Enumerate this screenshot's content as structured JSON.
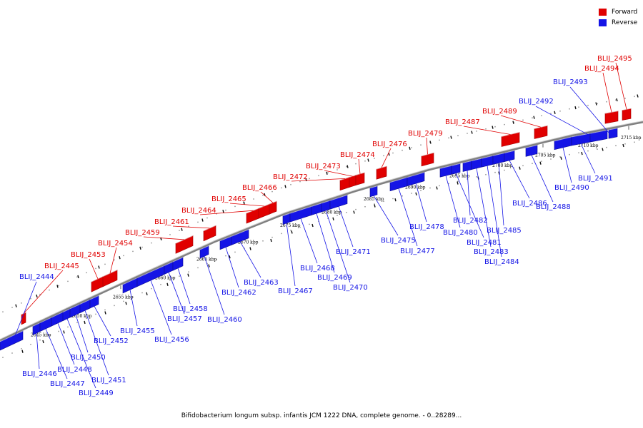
{
  "caption": "Bifidobacterium longum subsp. infantis JCM 1222 DNA, complete genome. - 0..28289...",
  "legend": [
    {
      "label": "Forward",
      "color": "#e00000"
    },
    {
      "label": "Reverse",
      "color": "#1414e6"
    }
  ],
  "colors": {
    "forward": "#e00000",
    "reverse": "#1414e6",
    "backbone": "#808080"
  },
  "ticks": [
    "2645 kbp",
    "2650 kbp",
    "2655 kbp",
    "2660 kbp",
    "2665 kbp",
    "2670 kbp",
    "2675 kbp",
    "2680 kbp",
    "2685 kbp",
    "2690 kbp",
    "2695 kbp",
    "2700 kbp",
    "2705 kbp",
    "2710 kbp",
    "2715 kbp"
  ],
  "forward_genes": [
    "BLIJ_2445",
    "BLIJ_2453",
    "BLIJ_2454",
    "BLIJ_2459",
    "BLIJ_2461",
    "BLIJ_2464",
    "BLIJ_2465",
    "BLIJ_2466",
    "BLIJ_2472",
    "BLIJ_2473",
    "BLIJ_2474",
    "BLIJ_2476",
    "BLIJ_2479",
    "BLIJ_2487",
    "BLIJ_2489",
    "BLIJ_2494",
    "BLIJ_2495"
  ],
  "reverse_genes": [
    "BLIJ_2444",
    "BLIJ_2446",
    "BLIJ_2447",
    "BLIJ_2448",
    "BLIJ_2449",
    "BLIJ_2450",
    "BLIJ_2451",
    "BLIJ_2452",
    "BLIJ_2455",
    "BLIJ_2456",
    "BLIJ_2457",
    "BLIJ_2458",
    "BLIJ_2460",
    "BLIJ_2462",
    "BLIJ_2463",
    "BLIJ_2467",
    "BLIJ_2468",
    "BLIJ_2469",
    "BLIJ_2470",
    "BLIJ_2471",
    "BLIJ_2475",
    "BLIJ_2477",
    "BLIJ_2478",
    "BLIJ_2480",
    "BLIJ_2481",
    "BLIJ_2482",
    "BLIJ_2483",
    "BLIJ_2484",
    "BLIJ_2485",
    "BLIJ_2486",
    "BLIJ_2488",
    "BLIJ_2490",
    "BLIJ_2491",
    "BLIJ_2492",
    "BLIJ_2493"
  ]
}
